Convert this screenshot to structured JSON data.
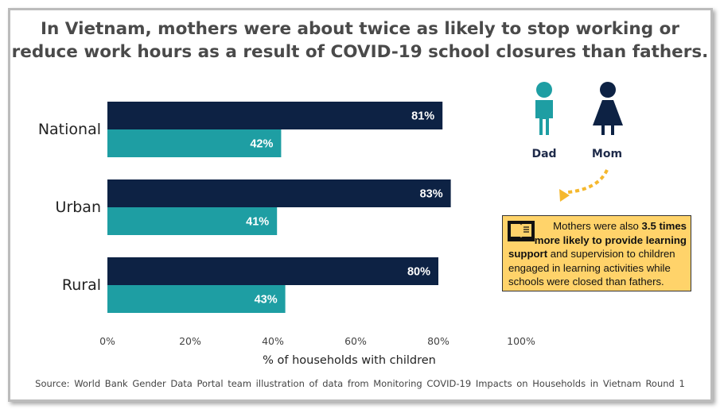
{
  "title_line1": "In Vietnam, mothers were about twice as likely to stop working or",
  "title_line2": "reduce work hours as a result of COVID-19 school closures than fathers.",
  "chart_data": {
    "type": "bar",
    "orientation": "horizontal",
    "categories": [
      "National",
      "Urban",
      "Rural"
    ],
    "series": [
      {
        "name": "Mom",
        "color": "#0d2244",
        "values": [
          81,
          83,
          80
        ],
        "labels": [
          "81%",
          "83%",
          "80%"
        ]
      },
      {
        "name": "Dad",
        "color": "#1e9ea3",
        "values": [
          42,
          41,
          43
        ],
        "labels": [
          "42%",
          "41%",
          "43%"
        ]
      }
    ],
    "xlim": [
      0,
      100
    ],
    "xticks": [
      "0%",
      "20%",
      "40%",
      "60%",
      "80%",
      "100%"
    ],
    "xlabel": "% of households with children",
    "grid": false,
    "legend_position": "top-right"
  },
  "legend": {
    "dad_label": "Dad",
    "mom_label": "Mom",
    "dad_icon": "man-icon",
    "mom_icon": "woman-icon"
  },
  "callout": {
    "icon": "open-book-icon",
    "text_a": "Mothers were also ",
    "text_b": "3.5 times",
    "text_c": "more likely to provide learning",
    "text_d": "support",
    "text_e": " and supervision to children",
    "text_f": "engaged in learning activities while",
    "text_g": "schools were closed than fathers.",
    "background": "#ffd36a",
    "arrow_color": "#f5b82e"
  },
  "source": "Source: World Bank Gender Data Portal team illustration of data from Monitoring COVID-19 Impacts on Households in Vietnam Round 1"
}
